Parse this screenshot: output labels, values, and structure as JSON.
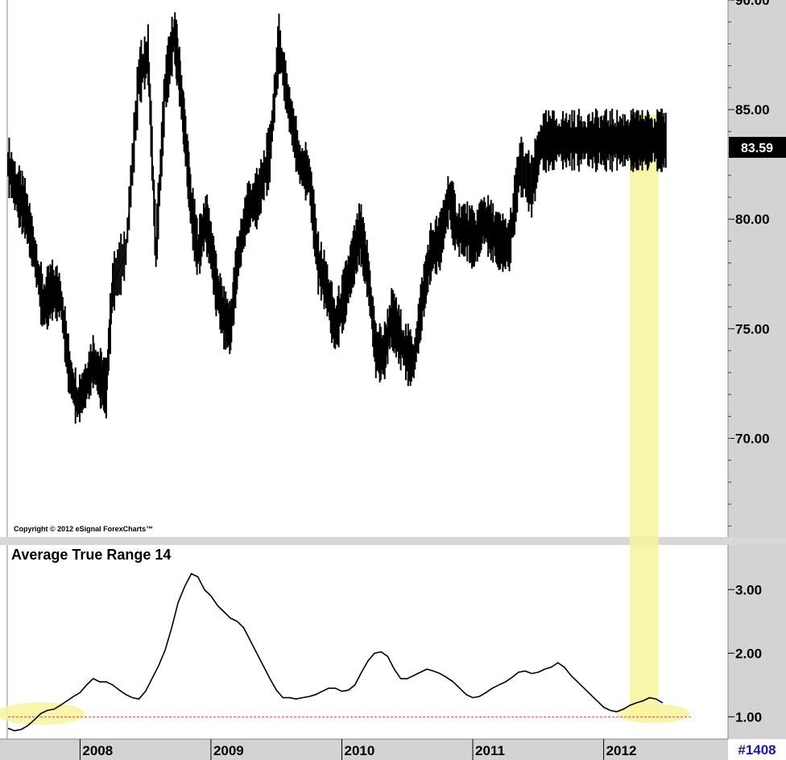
{
  "copyright": "Copyright © 2012 eSignal ForexCharts™",
  "indicator_title": "Average True Range 14",
  "chart_id": "#1408",
  "last_price_label": "83.59",
  "colors": {
    "highlight": "#f7f59c",
    "axis_bg": "#c8c8c8",
    "price_line": "#000000",
    "reference_line": "#d9534f",
    "id_text": "#1a1aa6"
  },
  "chart_data": [
    {
      "type": "line",
      "chart": "price",
      "ylim": [
        65.5,
        90
      ],
      "y_ticks": [
        "90.00",
        "85.00",
        "80.00",
        "75.00",
        "70.00"
      ],
      "y_tick_values": [
        90,
        85,
        80,
        75,
        70
      ],
      "x_tick_labels": [
        "2008",
        "2009",
        "2010",
        "2011",
        "2012"
      ],
      "x_tick_values": [
        2008.0,
        2009.0,
        2010.0,
        2011.0,
        2012.0
      ],
      "xlim": [
        2007.45,
        2012.95
      ],
      "last_price": 83.59,
      "highlight_x": [
        2012.2,
        2012.42
      ],
      "series": [
        {
          "x": [
            2007.45,
            2007.52,
            2007.58,
            2007.65,
            2007.72,
            2007.78,
            2007.85,
            2007.92,
            2007.98,
            2008.05,
            2008.1,
            2008.15,
            2008.2,
            2008.25,
            2008.35,
            2008.45,
            2008.52,
            2008.58,
            2008.65,
            2008.72,
            2008.76,
            2008.8,
            2008.85,
            2008.9,
            2008.96,
            2009.0,
            2009.04,
            2009.1,
            2009.15,
            2009.2,
            2009.28,
            2009.36,
            2009.45,
            2009.52,
            2009.6,
            2009.68,
            2009.75,
            2009.82,
            2009.88,
            2009.95,
            2010.02,
            2010.08,
            2010.14,
            2010.2,
            2010.26,
            2010.32,
            2010.38,
            2010.42,
            2010.48,
            2010.55,
            2010.62,
            2010.68,
            2010.75,
            2010.82,
            2010.88,
            2010.95,
            2011.02,
            2011.08,
            2011.14,
            2011.2,
            2011.28,
            2011.36,
            2011.45,
            2011.52,
            2011.6,
            2011.68,
            2011.75,
            2011.82,
            2011.88,
            2011.95,
            2012.02,
            2012.08,
            2012.14,
            2012.2,
            2012.24,
            2012.28,
            2012.32,
            2012.36,
            2012.4,
            2012.44,
            2012.48
          ],
          "y": [
            82.5,
            81.2,
            80.5,
            78.5,
            76.0,
            76.8,
            76.5,
            73.0,
            71.6,
            72.5,
            73.5,
            72.8,
            72.3,
            77.0,
            78.5,
            86.5,
            87.5,
            78.5,
            86.0,
            88.5,
            86.5,
            84.0,
            80.5,
            78.5,
            80.0,
            78.8,
            77.0,
            75.5,
            75.0,
            78.0,
            80.5,
            81.0,
            83.0,
            88.0,
            85.0,
            82.5,
            82.0,
            78.0,
            77.0,
            75.0,
            76.5,
            78.0,
            79.5,
            77.5,
            74.0,
            73.8,
            75.5,
            75.0,
            74.0,
            73.5,
            76.5,
            78.5,
            79.0,
            81.0,
            79.5,
            79.5,
            79.0,
            80.0,
            79.5,
            79.0,
            78.8,
            82.5,
            81.5,
            83.5,
            83.6,
            83.6,
            83.6,
            83.6,
            83.6,
            83.6,
            83.6,
            83.6,
            83.6,
            83.6,
            83.6,
            83.6,
            83.6,
            83.6,
            83.6,
            83.6,
            83.6
          ]
        }
      ]
    },
    {
      "type": "line",
      "chart": "atr",
      "title": "Average True Range 14",
      "ylim": [
        0.65,
        3.7
      ],
      "y_ticks": [
        "3.00",
        "2.00",
        "1.00"
      ],
      "y_tick_values": [
        3.0,
        2.0,
        1.0
      ],
      "reference_line": 1.0,
      "highlight_x": [
        2007.65,
        2007.75
      ],
      "series": [
        {
          "x": [
            2007.45,
            2007.5,
            2007.55,
            2007.6,
            2007.65,
            2007.7,
            2007.75,
            2007.8,
            2007.85,
            2007.9,
            2007.95,
            2008.0,
            2008.05,
            2008.1,
            2008.15,
            2008.2,
            2008.25,
            2008.3,
            2008.35,
            2008.4,
            2008.45,
            2008.5,
            2008.55,
            2008.6,
            2008.65,
            2008.7,
            2008.75,
            2008.8,
            2008.85,
            2008.9,
            2008.95,
            2009.0,
            2009.05,
            2009.1,
            2009.15,
            2009.2,
            2009.25,
            2009.3,
            2009.35,
            2009.4,
            2009.45,
            2009.5,
            2009.55,
            2009.6,
            2009.65,
            2009.7,
            2009.75,
            2009.8,
            2009.85,
            2009.9,
            2009.95,
            2010.0,
            2010.05,
            2010.1,
            2010.15,
            2010.2,
            2010.25,
            2010.3,
            2010.35,
            2010.4,
            2010.45,
            2010.5,
            2010.55,
            2010.6,
            2010.65,
            2010.7,
            2010.75,
            2010.8,
            2010.85,
            2010.9,
            2010.95,
            2011.0,
            2011.05,
            2011.1,
            2011.15,
            2011.2,
            2011.25,
            2011.3,
            2011.35,
            2011.4,
            2011.45,
            2011.5,
            2011.55,
            2011.6,
            2011.65,
            2011.7,
            2011.75,
            2011.8,
            2011.85,
            2011.9,
            2011.95,
            2012.0,
            2012.05,
            2012.1,
            2012.15,
            2012.2,
            2012.25,
            2012.3,
            2012.35,
            2012.4,
            2012.45
          ],
          "y": [
            0.82,
            0.78,
            0.8,
            0.86,
            0.95,
            1.05,
            1.1,
            1.12,
            1.18,
            1.25,
            1.32,
            1.38,
            1.5,
            1.6,
            1.55,
            1.55,
            1.5,
            1.42,
            1.35,
            1.3,
            1.28,
            1.4,
            1.6,
            1.8,
            2.05,
            2.4,
            2.8,
            3.05,
            3.25,
            3.2,
            3.0,
            2.9,
            2.75,
            2.65,
            2.55,
            2.5,
            2.4,
            2.2,
            2.0,
            1.8,
            1.6,
            1.42,
            1.3,
            1.3,
            1.28,
            1.3,
            1.32,
            1.35,
            1.4,
            1.45,
            1.45,
            1.4,
            1.42,
            1.5,
            1.7,
            1.88,
            2.0,
            2.02,
            1.95,
            1.75,
            1.6,
            1.6,
            1.65,
            1.7,
            1.75,
            1.72,
            1.68,
            1.62,
            1.55,
            1.45,
            1.35,
            1.3,
            1.32,
            1.38,
            1.45,
            1.5,
            1.55,
            1.62,
            1.7,
            1.72,
            1.68,
            1.7,
            1.75,
            1.78,
            1.85,
            1.78,
            1.65,
            1.55,
            1.45,
            1.35,
            1.25,
            1.15,
            1.1,
            1.08,
            1.12,
            1.18,
            1.22,
            1.25,
            1.3,
            1.28,
            1.22
          ]
        }
      ]
    }
  ]
}
